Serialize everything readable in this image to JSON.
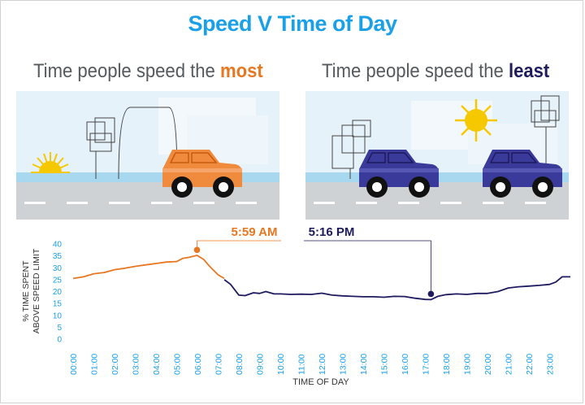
{
  "title": "Speed V Time of Day",
  "left_panel": {
    "text": "Time people speed the ",
    "highlight": "most",
    "highlight_color": "#e87722"
  },
  "right_panel": {
    "text": "Time people speed the ",
    "highlight": "least",
    "highlight_color": "#1e1b5e"
  },
  "colors": {
    "title": "#1aa0e8",
    "morning_line": "#e87722",
    "rest_line": "#1e1b5e",
    "tick_labels": "#1aa0e8",
    "axis_text": "#333333"
  },
  "chart_data": {
    "type": "line",
    "xlabel": "TIME OF DAY",
    "ylabel": "% TIME SPENT ABOVE SPEED LIMIT",
    "ylim": [
      0,
      40
    ],
    "yticks": [
      0,
      5,
      10,
      15,
      20,
      25,
      30,
      35,
      40
    ],
    "xlim": [
      0,
      24
    ],
    "x_tick_labels": [
      "00:00",
      "01:00",
      "02:00",
      "03:00",
      "04:00",
      "05:00",
      "06:00",
      "07:00",
      "08:00",
      "09:00",
      "10:00",
      "11:00",
      "12:00",
      "13:00",
      "14:00",
      "15:00",
      "16:00",
      "17:00",
      "18:00",
      "19:00",
      "20:00",
      "21:00",
      "22:00",
      "23:00"
    ],
    "grid": false,
    "series": [
      {
        "color": "#e87722",
        "x": [
          0,
          0.5,
          1,
          1.5,
          2,
          2.5,
          3,
          3.5,
          4,
          4.5,
          5,
          5.3,
          5.6,
          5.98,
          6.3,
          6.6,
          7.0,
          7.3
        ],
        "y": [
          25.5,
          26.2,
          27.5,
          28.0,
          29.2,
          29.8,
          30.6,
          31.2,
          31.8,
          32.4,
          32.6,
          34.0,
          34.4,
          35.2,
          33.5,
          30.5,
          27.0,
          25.5
        ]
      },
      {
        "color": "#1e1b5e",
        "x": [
          7.3,
          7.6,
          8.0,
          8.3,
          8.7,
          9.0,
          9.3,
          9.7,
          10.0,
          10.5,
          11,
          11.5,
          12,
          12.5,
          13,
          13.5,
          14,
          14.5,
          15,
          15.5,
          16,
          16.5,
          17.0,
          17.27,
          17.6,
          18,
          18.5,
          19,
          19.5,
          20,
          20.5,
          21,
          21.5,
          22,
          22.5,
          23,
          23.3,
          23.6,
          24
        ],
        "y": [
          25.0,
          23.0,
          18.5,
          18.3,
          19.5,
          19.2,
          20.0,
          19.0,
          19.0,
          18.8,
          18.9,
          18.8,
          19.3,
          18.5,
          18.2,
          18.0,
          17.8,
          17.8,
          17.6,
          18.0,
          17.9,
          17.2,
          16.7,
          16.6,
          18.0,
          18.7,
          19.0,
          18.8,
          19.2,
          19.2,
          20.0,
          21.5,
          22.0,
          22.3,
          22.6,
          23.0,
          24.0,
          26.2,
          26.2
        ]
      }
    ],
    "annotations": [
      {
        "x": 5.98,
        "y": 37.5,
        "label": "5:59 AM",
        "color": "#e87722"
      },
      {
        "x": 17.27,
        "y": 19.0,
        "label": "5:16 PM",
        "color": "#1e1b5e"
      }
    ]
  }
}
